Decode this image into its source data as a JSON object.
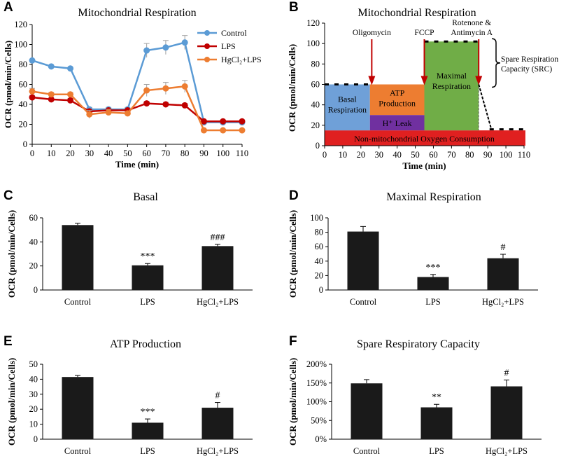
{
  "colors": {
    "control": "#5b9bd5",
    "lps": "#c00000",
    "hgcl2_lps": "#ed7d31",
    "bar": "#1a1a1a",
    "basal": "#6fa0d8",
    "atp": "#ed7d31",
    "leak": "#7030a0",
    "maximal": "#70ad47",
    "nonmito": "#e02020"
  },
  "chart_data": [
    {
      "id": "A",
      "type": "line",
      "title": "Mitochondrial Respiration",
      "xlabel": "Time (min)",
      "ylabel": "OCR (pmol/min/Cells)",
      "xlim": [
        0,
        110
      ],
      "ylim": [
        0,
        120
      ],
      "xticks": [
        "0",
        "10",
        "20",
        "30",
        "40",
        "50",
        "60",
        "70",
        "80",
        "90",
        "100",
        "110"
      ],
      "yticks": [
        "0",
        "20",
        "40",
        "60",
        "80",
        "100",
        "120"
      ],
      "x": [
        0,
        10,
        20,
        30,
        40,
        50,
        60,
        70,
        80,
        90,
        100,
        110
      ],
      "series": [
        {
          "name": "Control",
          "values": [
            84,
            78,
            76,
            35,
            35,
            35,
            94,
            97,
            102,
            22,
            22,
            22
          ],
          "errors": [
            1,
            1,
            1,
            2,
            2,
            2,
            7,
            7,
            7,
            1,
            1,
            1
          ]
        },
        {
          "name": "LPS",
          "values": [
            47,
            45,
            44,
            33,
            34,
            34,
            41,
            40,
            39,
            23,
            23,
            23
          ],
          "errors": [
            2,
            2,
            2,
            2,
            2,
            2,
            2,
            2,
            2,
            1,
            1,
            1
          ]
        },
        {
          "name": "HgCl₂+LPS",
          "values": [
            53,
            50,
            50,
            30,
            32,
            31,
            54,
            56,
            58,
            14,
            14,
            14
          ],
          "errors": [
            3,
            2,
            2,
            4,
            3,
            2,
            6,
            6,
            6,
            1,
            1,
            1
          ]
        }
      ]
    },
    {
      "id": "B",
      "type": "area",
      "title": "Mitochondrial Respiration",
      "xlabel": "Time (min)",
      "ylabel": "OCR (pmol/min/Cells)",
      "xlim": [
        0,
        110
      ],
      "ylim": [
        0,
        120
      ],
      "xticks": [
        "0",
        "10",
        "20",
        "30",
        "40",
        "50",
        "60",
        "70",
        "80",
        "90",
        "100",
        "110"
      ],
      "yticks": [
        "0",
        "20",
        "40",
        "60",
        "80",
        "100",
        "120"
      ],
      "injections": [
        {
          "label": "Oligomycin",
          "x": 26
        },
        {
          "label": "FCCP",
          "x": 55
        },
        {
          "label_line1": "Rotenone &",
          "label_line2": "Antimycin A",
          "x": 85
        }
      ],
      "regions": {
        "non_mito": "Non-mitochondrial Oxygen Consumption",
        "basal_1": "Basal",
        "basal_2": "Respiration",
        "atp_1": "ATP",
        "atp_2": "Production",
        "leak": "H⁺ Leak",
        "max_1": "Maximal",
        "max_2": "Respiration",
        "src_1": "Spare Respiration",
        "src_2": "Capacity (SRC)"
      },
      "levels": {
        "non_mito": 15,
        "basal": 60,
        "leak": 30,
        "maximal": 102
      }
    },
    {
      "id": "C",
      "type": "bar",
      "title": "Basal",
      "ylabel": "OCR (pmol/min/Cells)",
      "categories": [
        "Control",
        "LPS",
        "HgCl₂+LPS"
      ],
      "values": [
        54,
        20.5,
        36.5
      ],
      "errors": [
        1.5,
        1.5,
        1.5
      ],
      "ylim": [
        0,
        60
      ],
      "yticks": [
        "0",
        "20",
        "40",
        "60"
      ],
      "annotations": [
        "",
        "***",
        "###"
      ]
    },
    {
      "id": "D",
      "type": "bar",
      "title": "Maximal Respiration",
      "ylabel": "OCR (pmol/min/Cells)",
      "categories": [
        "Control",
        "LPS",
        "HgCl₂+LPS"
      ],
      "values": [
        81,
        18,
        44
      ],
      "errors": [
        7,
        3.5,
        5.5
      ],
      "ylim": [
        0,
        100
      ],
      "yticks": [
        "0",
        "20",
        "40",
        "60",
        "80",
        "100"
      ],
      "annotations": [
        "",
        "***",
        "#"
      ]
    },
    {
      "id": "E",
      "type": "bar",
      "title": "ATP Production",
      "ylabel": "OCR (pmol/min/Cells)",
      "categories": [
        "Control",
        "LPS",
        "HgCl₂+LPS"
      ],
      "values": [
        41.5,
        11,
        21
      ],
      "errors": [
        1,
        2.5,
        3.5
      ],
      "ylim": [
        0,
        50
      ],
      "yticks": [
        "0",
        "10",
        "20",
        "30",
        "40",
        "50"
      ],
      "annotations": [
        "",
        "***",
        "#"
      ]
    },
    {
      "id": "F",
      "type": "bar",
      "title": "Spare Respiratory Capacity",
      "ylabel": "OCR (pmol/min/Cells)",
      "categories": [
        "Control",
        "LPS",
        "HgCl₂+LPS"
      ],
      "values": [
        149,
        85,
        141
      ],
      "errors": [
        10,
        8,
        17
      ],
      "ylim": [
        0,
        200
      ],
      "yticks": [
        "0%",
        "50%",
        "100%",
        "150%",
        "200%"
      ],
      "annotations": [
        "",
        "**",
        "#"
      ]
    }
  ]
}
